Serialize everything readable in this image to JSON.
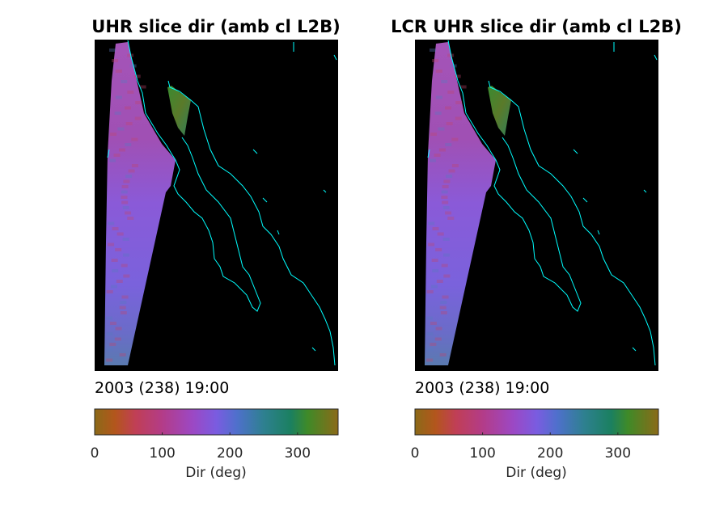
{
  "chart_data": {
    "type": "heatmap",
    "colorbar": {
      "clim": [
        0,
        360
      ],
      "ticks": [
        0,
        100,
        200,
        300
      ],
      "tick_labels": [
        "0",
        "100",
        "200",
        "300"
      ],
      "label": "Dir (deg)",
      "colormap_stops": [
        {
          "v": 0,
          "c": "#8b6a18"
        },
        {
          "v": 30,
          "c": "#b3561c"
        },
        {
          "v": 60,
          "c": "#c03f55"
        },
        {
          "v": 100,
          "c": "#b33c88"
        },
        {
          "v": 145,
          "c": "#9c48c4"
        },
        {
          "v": 180,
          "c": "#7a5ce0"
        },
        {
          "v": 210,
          "c": "#4f70cc"
        },
        {
          "v": 250,
          "c": "#2e8090"
        },
        {
          "v": 290,
          "c": "#1b8060"
        },
        {
          "v": 315,
          "c": "#3f8a28"
        },
        {
          "v": 360,
          "c": "#8b6a18"
        }
      ]
    },
    "panels": [
      {
        "title": "UHR slice dir (amb cl L2B)",
        "subtitle": "2003 (238) 19:00"
      },
      {
        "title": "LCR UHR slice dir (amb cl L2B)",
        "subtitle": "2003 (238) 19:00"
      }
    ],
    "background": "#000000",
    "coastline_color": "#00ffff"
  }
}
